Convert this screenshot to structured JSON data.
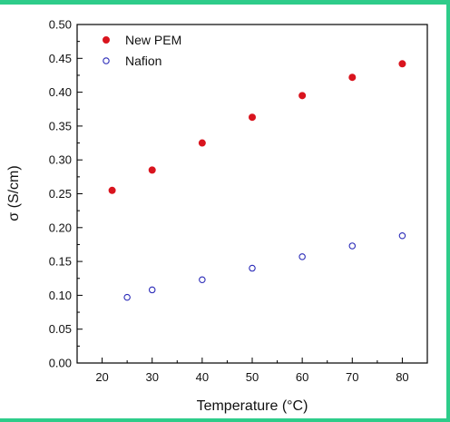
{
  "chart_data": {
    "type": "scatter",
    "title": "",
    "xlabel": "Temperature (°C)",
    "ylabel": "σ  (S/cm)",
    "xlim": [
      15,
      85
    ],
    "ylim": [
      0.0,
      0.5
    ],
    "x_ticks": [
      "20",
      "30",
      "40",
      "50",
      "60",
      "70",
      "80"
    ],
    "y_ticks": [
      "0.00",
      "0.05",
      "0.10",
      "0.15",
      "0.20",
      "0.25",
      "0.30",
      "0.35",
      "0.40",
      "0.45",
      "0.50"
    ],
    "legend_position": "top-left",
    "grid": false,
    "series": [
      {
        "name": "New PEM",
        "marker": "filled-circle",
        "color": "#d9141e",
        "points": [
          [
            22,
            0.255
          ],
          [
            30,
            0.285
          ],
          [
            40,
            0.325
          ],
          [
            50,
            0.363
          ],
          [
            60,
            0.395
          ],
          [
            70,
            0.422
          ],
          [
            80,
            0.442
          ]
        ]
      },
      {
        "name": "Nafion",
        "marker": "open-circle",
        "color": "#2b2bb8",
        "points": [
          [
            25,
            0.097
          ],
          [
            30,
            0.108
          ],
          [
            40,
            0.123
          ],
          [
            50,
            0.14
          ],
          [
            60,
            0.157
          ],
          [
            70,
            0.173
          ],
          [
            80,
            0.188
          ]
        ]
      }
    ]
  }
}
